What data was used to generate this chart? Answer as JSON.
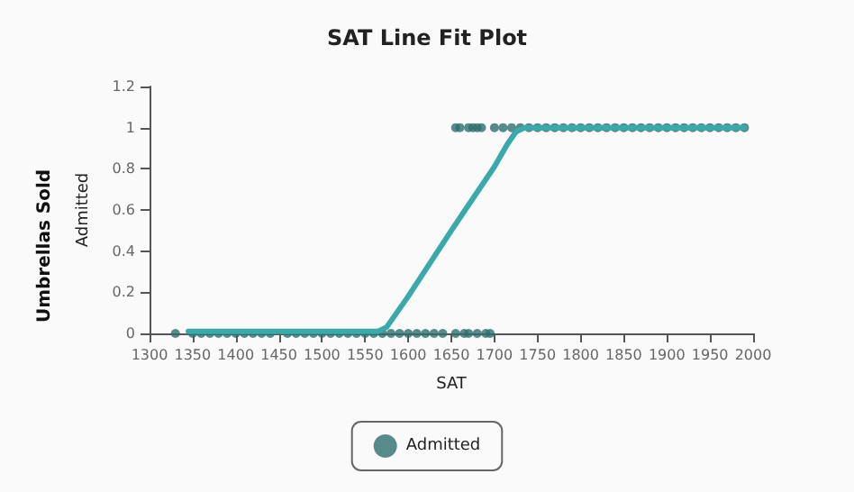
{
  "chart_data": {
    "type": "scatter",
    "title": "SAT Line Fit Plot",
    "xlabel": "SAT",
    "ylabel": "Admitted",
    "annotations": [
      "Umbrellas Sold"
    ],
    "xlim": [
      1300,
      2000
    ],
    "xticks": [
      1300,
      1350,
      1400,
      1450,
      1500,
      1550,
      1600,
      1650,
      1700,
      1750,
      1800,
      1850,
      1900,
      1950,
      2000
    ],
    "ylim": [
      0,
      1.2
    ],
    "yticks": [
      0,
      0.2,
      0.4,
      0.6,
      0.8,
      1,
      1.2
    ],
    "grid": false,
    "legend": "bottom",
    "marker": "circle",
    "series": [
      {
        "type": "line",
        "marker": "none",
        "line_style": "solid",
        "color": "#3aa9a9",
        "x": [
          1345,
          1400,
          1500,
          1565,
          1575,
          1600,
          1650,
          1700,
          1715,
          1725,
          1735,
          1800,
          1900,
          1990
        ],
        "values": [
          0.01,
          0.01,
          0.01,
          0.01,
          0.03,
          0.18,
          0.5,
          0.81,
          0.92,
          0.98,
          1,
          1,
          1,
          1
        ]
      },
      {
        "name": "Admitted",
        "color": "#2e6e6e",
        "x": [
          1330,
          1350,
          1360,
          1370,
          1380,
          1390,
          1400,
          1410,
          1420,
          1430,
          1440,
          1460,
          1470,
          1480,
          1490,
          1500,
          1510,
          1520,
          1530,
          1540,
          1550,
          1560,
          1570,
          1580,
          1590,
          1600,
          1610,
          1620,
          1630,
          1640,
          1655,
          1665,
          1670,
          1680,
          1690,
          1695,
          1655,
          1660,
          1670,
          1675,
          1680,
          1685,
          1700,
          1710,
          1720,
          1730,
          1740,
          1750,
          1760,
          1770,
          1780,
          1790,
          1800,
          1810,
          1820,
          1830,
          1840,
          1850,
          1860,
          1870,
          1880,
          1890,
          1900,
          1910,
          1920,
          1930,
          1940,
          1950,
          1960,
          1970,
          1980,
          1990
        ],
        "values": [
          0,
          0,
          0,
          0,
          0,
          0,
          0,
          0,
          0,
          0,
          0,
          0,
          0,
          0,
          0,
          0,
          0,
          0,
          0,
          0,
          0,
          0,
          0,
          0,
          0,
          0,
          0,
          0,
          0,
          0,
          0,
          0,
          0,
          0,
          0,
          0,
          1,
          1,
          1,
          1,
          1,
          1,
          1,
          1,
          1,
          1,
          1,
          1,
          1,
          1,
          1,
          1,
          1,
          1,
          1,
          1,
          1,
          1,
          1,
          1,
          1,
          1,
          1,
          1,
          1,
          1,
          1,
          1,
          1,
          1,
          1,
          1
        ]
      }
    ]
  }
}
